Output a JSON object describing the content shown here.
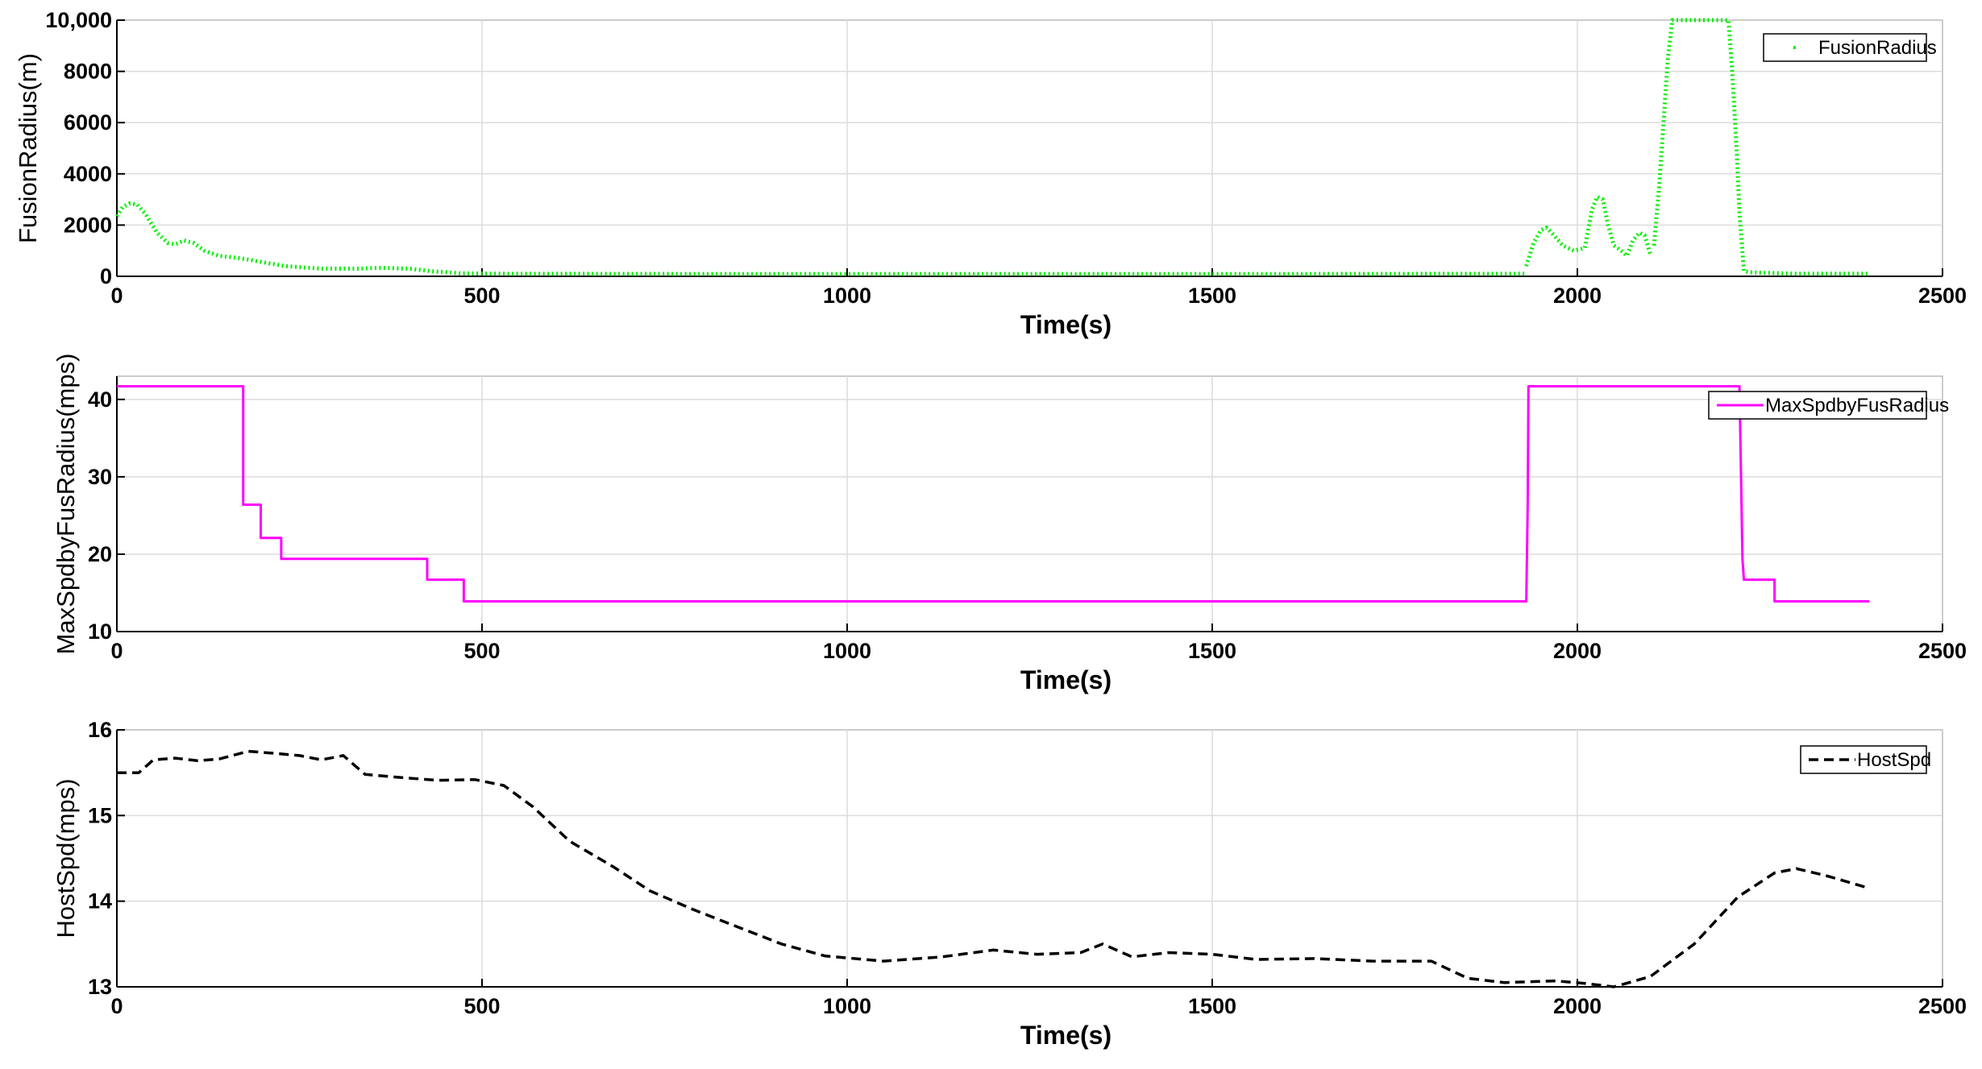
{
  "chart_data": [
    {
      "type": "line",
      "xlabel": "Time(s)",
      "ylabel": "FusionRadius(m)",
      "xlim": [
        0,
        2500
      ],
      "ylim": [
        0,
        10000
      ],
      "xticks": [
        "0",
        "500",
        "1000",
        "1500",
        "2000",
        "2500"
      ],
      "yticks": [
        "0",
        "2000",
        "4000",
        "6000",
        "8000",
        "10,000"
      ],
      "grid": true,
      "legend_position": "top-right",
      "series": [
        {
          "name": "FusionRadius",
          "color": "#00ee00",
          "style": "dotted",
          "segments": [
            [
              [
                0,
                2350
              ],
              [
                8,
                2700
              ],
              [
                18,
                2850
              ],
              [
                28,
                2800
              ],
              [
                40,
                2400
              ],
              [
                55,
                1700
              ],
              [
                70,
                1300
              ],
              [
                80,
                1250
              ],
              [
                92,
                1400
              ],
              [
                105,
                1300
              ],
              [
                120,
                1000
              ],
              [
                140,
                800
              ],
              [
                170,
                700
              ],
              [
                200,
                550
              ],
              [
                230,
                400
              ],
              [
                280,
                300
              ],
              [
                330,
                300
              ],
              [
                360,
                330
              ],
              [
                400,
                300
              ],
              [
                430,
                200
              ],
              [
                470,
                120
              ],
              [
                520,
                100
              ],
              [
                800,
                90
              ],
              [
                1200,
                90
              ],
              [
                1600,
                90
              ],
              [
                1930,
                100
              ]
            ],
            [
              [
                1930,
                400
              ],
              [
                1940,
                1300
              ],
              [
                1950,
                1800
              ],
              [
                1958,
                1900
              ],
              [
                1968,
                1600
              ],
              [
                1980,
                1200
              ],
              [
                1995,
                1000
              ],
              [
                2010,
                1100
              ],
              [
                2020,
                2600
              ],
              [
                2027,
                3100
              ],
              [
                2035,
                3000
              ],
              [
                2042,
                2000
              ],
              [
                2050,
                1200
              ],
              [
                2060,
                1000
              ],
              [
                2068,
                800
              ],
              [
                2076,
                1400
              ],
              [
                2085,
                1700
              ],
              [
                2092,
                1600
              ],
              [
                2100,
                850
              ]
            ],
            [
              [
                2105,
                1200
              ],
              [
                2112,
                3500
              ],
              [
                2118,
                6000
              ],
              [
                2124,
                8500
              ],
              [
                2130,
                10000
              ],
              [
                2140,
                10000
              ],
              [
                2160,
                10000
              ],
              [
                2200,
                10000
              ],
              [
                2207,
                10000
              ],
              [
                2212,
                8000
              ],
              [
                2218,
                5000
              ],
              [
                2222,
                2500
              ],
              [
                2228,
                200
              ],
              [
                2240,
                150
              ],
              [
                2300,
                100
              ],
              [
                2400,
                100
              ]
            ]
          ]
        }
      ]
    },
    {
      "type": "line",
      "xlabel": "Time(s)",
      "ylabel": "MaxSpdbyFusRadius(mps)",
      "xlim": [
        0,
        2500
      ],
      "ylim": [
        10,
        43
      ],
      "xticks": [
        "0",
        "500",
        "1000",
        "1500",
        "2000",
        "2500"
      ],
      "yticks": [
        "10",
        "20",
        "30",
        "40"
      ],
      "grid": true,
      "legend_position": "top-right",
      "series": [
        {
          "name": "MaxSpdbyFusRadius",
          "color": "#ff00ff",
          "style": "solid",
          "points": [
            [
              0,
              41.7
            ],
            [
              173,
              41.7
            ],
            [
              173,
              26.4
            ],
            [
              197,
              26.4
            ],
            [
              197,
              22.1
            ],
            [
              225,
              22.1
            ],
            [
              225,
              19.4
            ],
            [
              425,
              19.4
            ],
            [
              425,
              16.7
            ],
            [
              475,
              16.7
            ],
            [
              475,
              13.9
            ],
            [
              1930,
              13.9
            ],
            [
              1932,
              26.4
            ],
            [
              1933,
              41.7
            ],
            [
              2222,
              41.7
            ],
            [
              2226,
              19.4
            ],
            [
              2228,
              16.7
            ],
            [
              2270,
              16.7
            ],
            [
              2270,
              13.9
            ],
            [
              2400,
              13.9
            ]
          ]
        }
      ]
    },
    {
      "type": "line",
      "xlabel": "Time(s)",
      "ylabel": "HostSpd(mps)",
      "xlim": [
        0,
        2500
      ],
      "ylim": [
        13,
        16
      ],
      "xticks": [
        "0",
        "500",
        "1000",
        "1500",
        "2000",
        "2500"
      ],
      "yticks": [
        "13",
        "14",
        "15",
        "16"
      ],
      "grid": true,
      "legend_position": "top-right",
      "series": [
        {
          "name": "HostSpd",
          "color": "#000000",
          "style": "dashed",
          "points": [
            [
              0,
              15.5
            ],
            [
              30,
              15.5
            ],
            [
              50,
              15.65
            ],
            [
              80,
              15.67
            ],
            [
              110,
              15.64
            ],
            [
              140,
              15.66
            ],
            [
              180,
              15.75
            ],
            [
              210,
              15.73
            ],
            [
              250,
              15.7
            ],
            [
              280,
              15.65
            ],
            [
              310,
              15.7
            ],
            [
              340,
              15.48
            ],
            [
              380,
              15.45
            ],
            [
              440,
              15.41
            ],
            [
              490,
              15.42
            ],
            [
              530,
              15.35
            ],
            [
              570,
              15.1
            ],
            [
              620,
              14.7
            ],
            [
              680,
              14.4
            ],
            [
              730,
              14.12
            ],
            [
              790,
              13.9
            ],
            [
              850,
              13.7
            ],
            [
              910,
              13.5
            ],
            [
              970,
              13.36
            ],
            [
              1050,
              13.3
            ],
            [
              1130,
              13.35
            ],
            [
              1200,
              13.43
            ],
            [
              1260,
              13.38
            ],
            [
              1320,
              13.4
            ],
            [
              1350,
              13.5
            ],
            [
              1390,
              13.35
            ],
            [
              1440,
              13.4
            ],
            [
              1500,
              13.38
            ],
            [
              1560,
              13.32
            ],
            [
              1640,
              13.33
            ],
            [
              1720,
              13.3
            ],
            [
              1800,
              13.3
            ],
            [
              1850,
              13.1
            ],
            [
              1900,
              13.05
            ],
            [
              1970,
              13.07
            ],
            [
              2010,
              13.04
            ],
            [
              2050,
              13.0
            ],
            [
              2100,
              13.12
            ],
            [
              2160,
              13.5
            ],
            [
              2220,
              14.05
            ],
            [
              2270,
              14.33
            ],
            [
              2300,
              14.38
            ],
            [
              2340,
              14.3
            ],
            [
              2400,
              14.15
            ]
          ]
        }
      ]
    }
  ]
}
